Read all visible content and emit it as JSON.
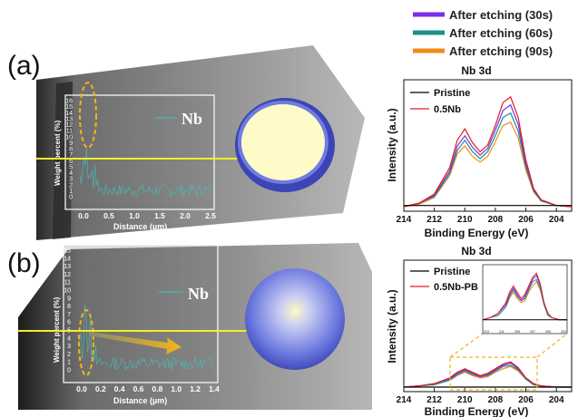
{
  "top_legend": [
    {
      "label": "After etching (30s)",
      "color": "#7b2ee8"
    },
    {
      "label": "After etching (60s)",
      "color": "#17918a"
    },
    {
      "label": "After etching (90s)",
      "color": "#f28a1a"
    }
  ],
  "panels": {
    "a": {
      "label": "(a)",
      "inset": {
        "element": "Nb",
        "ylabel": "Weight percent (%)",
        "xlabel": "Distance (µm)",
        "yticks": [
          "0",
          "1",
          "2",
          "3",
          "4",
          "5",
          "6",
          "7",
          "8",
          "9",
          "10",
          "11",
          "12",
          "13",
          "14",
          "15",
          "16"
        ],
        "xticks": [
          "0.0",
          "0.5",
          "1.0",
          "1.5",
          "2.0",
          "2.5"
        ]
      }
    },
    "b": {
      "label": "(b)",
      "inset": {
        "element": "Nb",
        "ylabel": "Weight percent (%)",
        "xlabel": "Distance (µm)",
        "yticks": [
          "0",
          "1",
          "2",
          "3",
          "4",
          "5",
          "6",
          "7",
          "8",
          "9",
          "10",
          "11",
          "12",
          "13",
          "14",
          "15"
        ],
        "xticks": [
          "0.0",
          "0.2",
          "0.4",
          "0.6",
          "0.8",
          "1.0",
          "1.2",
          "1.4"
        ]
      }
    }
  },
  "colors": {
    "pristine": "#000000",
    "sample": "#e21d1d",
    "c30": "#7b2ee8",
    "c60": "#17918a",
    "c90": "#f28a1a",
    "marker": "#f2ee2a",
    "ellipse": "#f0b41c",
    "trace": "#3fc6c0"
  },
  "chart_data": [
    {
      "type": "line",
      "title": "Nb 3d",
      "xlabel": "Binding Energy (eV)",
      "ylabel": "Intensity (a.u.)",
      "xlim": [
        203,
        214
      ],
      "x_reversed": true,
      "xticks": [
        "214",
        "212",
        "210",
        "208",
        "206",
        "204"
      ],
      "legend": [
        "Pristine",
        "0.5Nb"
      ],
      "legend_position": "top-left",
      "x": [
        214,
        213,
        212,
        211,
        210.5,
        210,
        209.5,
        209,
        208.5,
        208,
        207.5,
        207,
        206.5,
        206,
        205.5,
        205,
        204,
        203
      ],
      "series": [
        {
          "name": "Pristine",
          "values": [
            0.05,
            0.05,
            0.05,
            0.05,
            0.05,
            0.05,
            0.05,
            0.05,
            0.05,
            0.05,
            0.05,
            0.05,
            0.05,
            0.05,
            0.05,
            0.05,
            0.05,
            0.05
          ]
        },
        {
          "name": "0.5Nb",
          "values": [
            0.04,
            0.07,
            0.15,
            0.38,
            0.62,
            0.72,
            0.6,
            0.52,
            0.58,
            0.75,
            0.95,
            1.0,
            0.82,
            0.45,
            0.2,
            0.1,
            0.05,
            0.04
          ]
        },
        {
          "values": [
            0.04,
            0.07,
            0.14,
            0.35,
            0.57,
            0.66,
            0.56,
            0.49,
            0.55,
            0.71,
            0.88,
            0.93,
            0.76,
            0.42,
            0.19,
            0.1,
            0.05,
            0.04
          ]
        },
        {
          "values": [
            0.04,
            0.07,
            0.13,
            0.33,
            0.53,
            0.62,
            0.52,
            0.46,
            0.52,
            0.66,
            0.82,
            0.86,
            0.7,
            0.39,
            0.18,
            0.09,
            0.05,
            0.04
          ]
        },
        {
          "values": [
            0.04,
            0.06,
            0.12,
            0.31,
            0.5,
            0.57,
            0.48,
            0.43,
            0.48,
            0.61,
            0.75,
            0.78,
            0.64,
            0.36,
            0.17,
            0.09,
            0.05,
            0.04
          ]
        }
      ]
    },
    {
      "type": "line",
      "title": "Nb 3d",
      "xlabel": "Binding Energy (eV)",
      "ylabel": "Intensity (a.u.)",
      "xlim": [
        203,
        214
      ],
      "x_reversed": true,
      "xticks": [
        "214",
        "212",
        "210",
        "208",
        "206",
        "204"
      ],
      "legend": [
        "Pristine",
        "0.5Nb-PB"
      ],
      "legend_position": "top-left",
      "x": [
        214,
        213,
        212,
        211,
        210.5,
        210,
        209.5,
        209,
        208.5,
        208,
        207.5,
        207,
        206.5,
        206,
        205.5,
        205,
        204,
        203
      ],
      "series": [
        {
          "name": "Pristine",
          "values": [
            0.04,
            0.04,
            0.04,
            0.04,
            0.04,
            0.04,
            0.04,
            0.04,
            0.04,
            0.04,
            0.04,
            0.04,
            0.04,
            0.04,
            0.04,
            0.04,
            0.04,
            0.04
          ]
        },
        {
          "name": "0.5Nb-PB",
          "values": [
            0.04,
            0.05,
            0.07,
            0.12,
            0.17,
            0.2,
            0.17,
            0.14,
            0.16,
            0.2,
            0.24,
            0.26,
            0.21,
            0.12,
            0.07,
            0.05,
            0.04,
            0.04
          ]
        },
        {
          "values": [
            0.04,
            0.05,
            0.07,
            0.11,
            0.16,
            0.19,
            0.16,
            0.13,
            0.15,
            0.19,
            0.23,
            0.25,
            0.2,
            0.12,
            0.07,
            0.05,
            0.04,
            0.04
          ]
        },
        {
          "values": [
            0.04,
            0.05,
            0.06,
            0.1,
            0.15,
            0.18,
            0.15,
            0.13,
            0.14,
            0.18,
            0.22,
            0.23,
            0.19,
            0.11,
            0.06,
            0.05,
            0.04,
            0.04
          ]
        },
        {
          "values": [
            0.04,
            0.05,
            0.06,
            0.1,
            0.14,
            0.17,
            0.14,
            0.12,
            0.13,
            0.17,
            0.2,
            0.22,
            0.18,
            0.11,
            0.06,
            0.05,
            0.04,
            0.04
          ]
        }
      ],
      "zoom_inset": {
        "xticks": [
          "213",
          "211",
          "209",
          "207",
          "205",
          "203"
        ]
      }
    }
  ]
}
